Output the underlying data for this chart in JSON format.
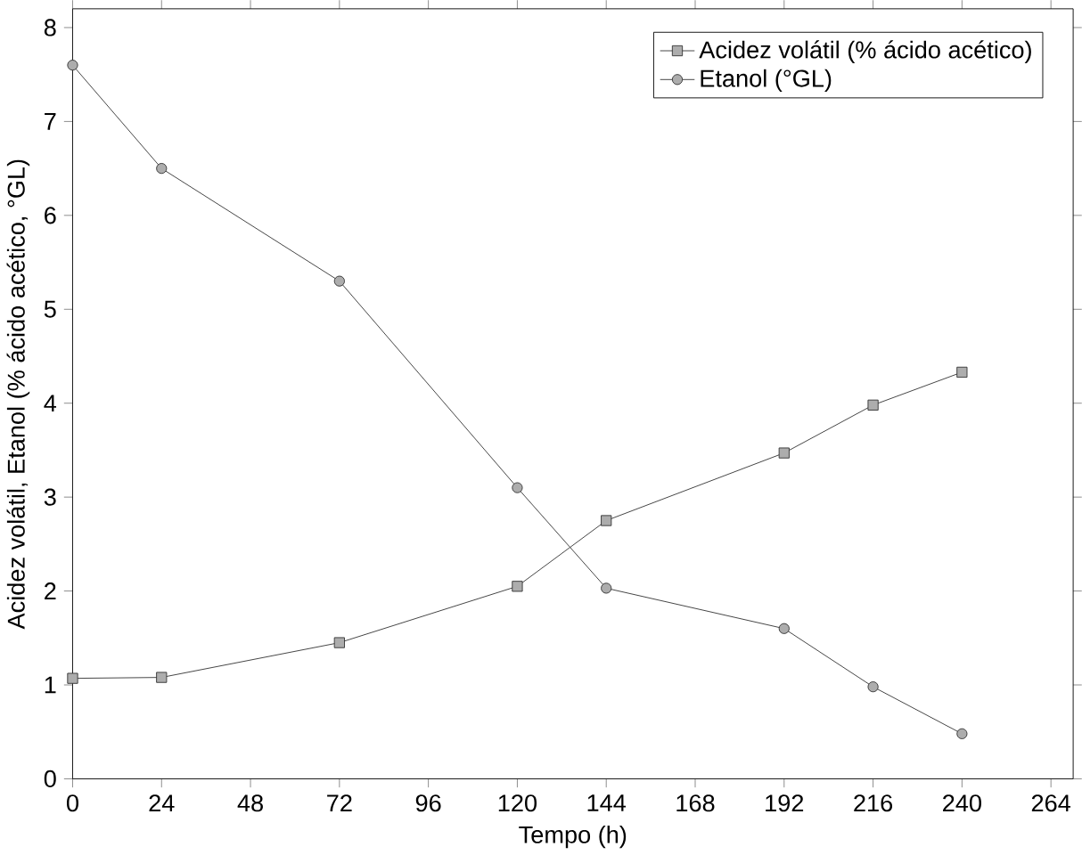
{
  "chart_data": {
    "type": "line",
    "xlabel": "Tempo (h)",
    "ylabel": "Acidez volátil, Etanol (% ácido acético, °GL)",
    "x": [
      0,
      24,
      72,
      120,
      144,
      192,
      216,
      240
    ],
    "series": [
      {
        "name": "Acidez volátil (% ácido acético)",
        "color": "#333333",
        "marker": "square",
        "values": [
          1.07,
          1.08,
          1.45,
          2.05,
          2.75,
          3.47,
          3.98,
          4.33
        ]
      },
      {
        "name": "Etanol (°GL)",
        "color": "#333333",
        "marker": "circle",
        "values": [
          7.6,
          6.5,
          5.3,
          3.1,
          2.03,
          1.6,
          0.98,
          0.48
        ]
      }
    ],
    "xlim": [
      0,
      270
    ],
    "ylim": [
      0,
      8.2
    ],
    "xticks": [
      0,
      24,
      48,
      72,
      96,
      120,
      144,
      168,
      192,
      216,
      240,
      264
    ],
    "yticks": [
      0,
      1,
      2,
      3,
      4,
      5,
      6,
      7,
      8
    ],
    "grid": false,
    "legend": "top right",
    "line_style": "solid"
  }
}
